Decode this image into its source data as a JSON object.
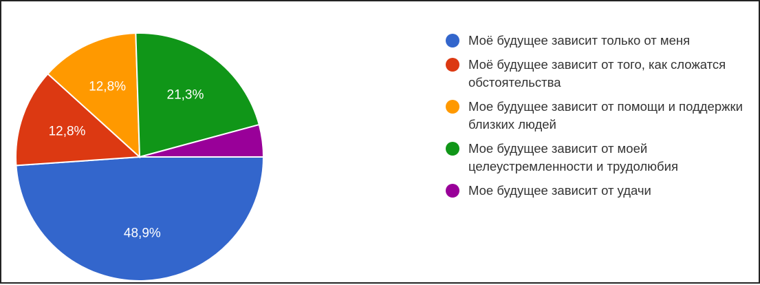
{
  "chart_data": {
    "type": "pie",
    "legend_position": "right",
    "slices": [
      {
        "label": "Моё будущее зависит только от меня",
        "value": 48.9,
        "display": "48,9%",
        "color": "#3366cc"
      },
      {
        "label": "Моё будущее зависит от того, как сложатся обстоятельства",
        "value": 12.8,
        "display": "12,8%",
        "color": "#dc3912"
      },
      {
        "label": "Мое будущее зависит от помощи и поддержки близких людей",
        "value": 12.8,
        "display": "12,8%",
        "color": "#ff9900"
      },
      {
        "label": "Мое будущее зависит от моей целеустремленности и трудолюбия",
        "value": 21.3,
        "display": "21,3%",
        "color": "#109618"
      },
      {
        "label": "Мое будущее зависит от удачи",
        "value": 4.2,
        "display": "",
        "color": "#990099"
      }
    ]
  }
}
